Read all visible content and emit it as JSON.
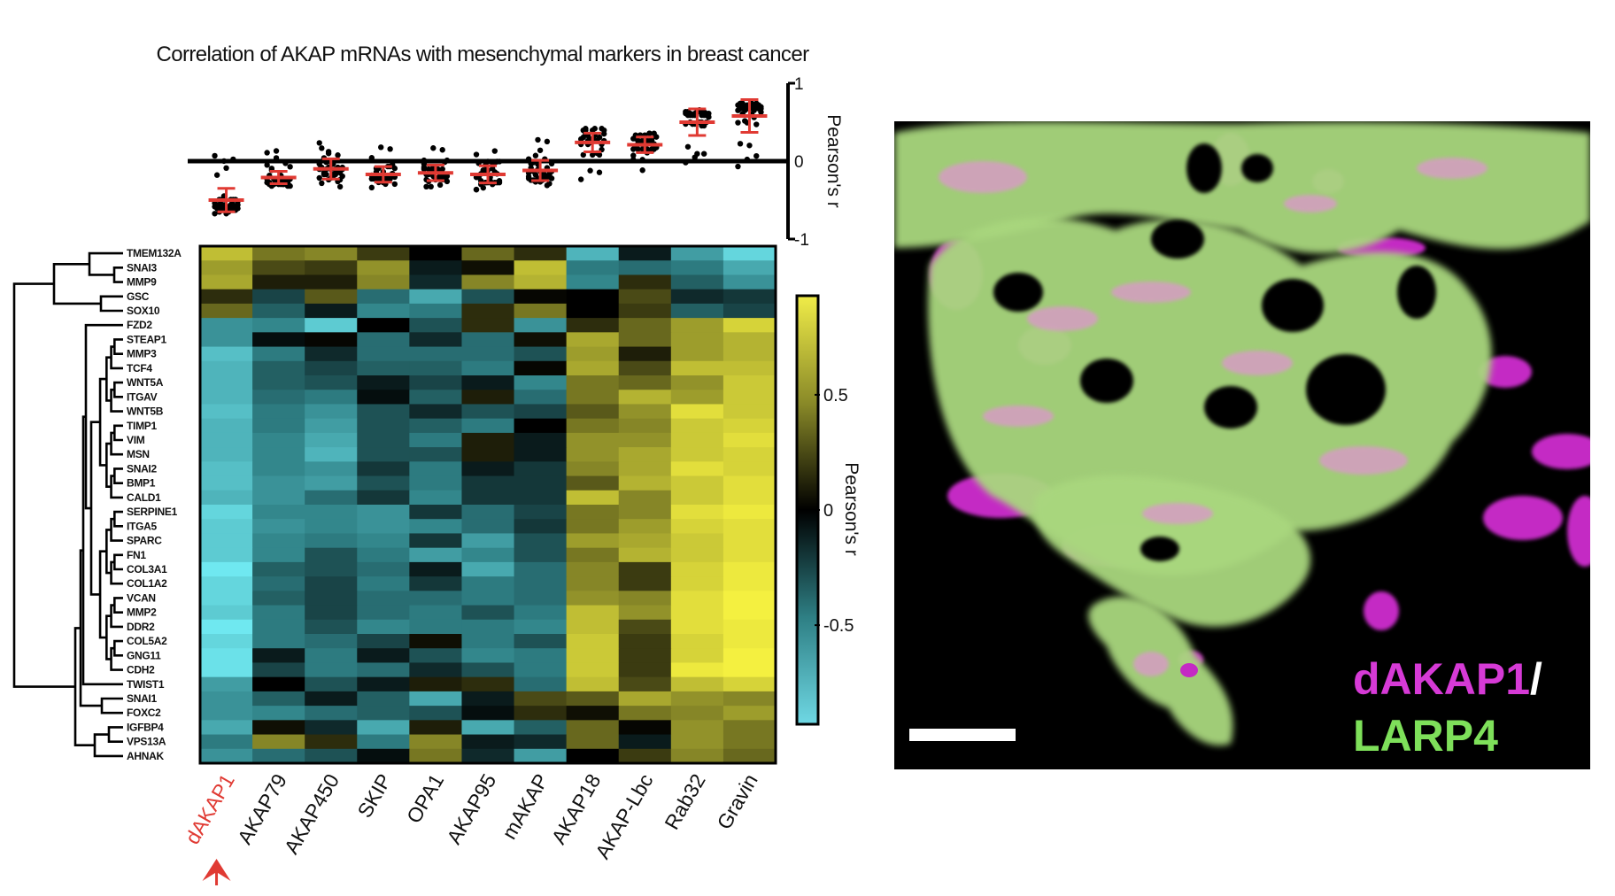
{
  "title": "Correlation of AKAP mRNAs with mesenchymal markers in breast cancer",
  "chart_data": [
    {
      "type": "scatter",
      "title": "Correlation of AKAP mRNAs with mesenchymal markers in breast cancer",
      "ylabel": "Pearson's r",
      "ylim": [
        -1,
        1
      ],
      "yticks": [
        "1",
        "0",
        "-1"
      ],
      "categories": [
        "dAKAP1",
        "AKAP79",
        "AKAP450",
        "SKIP",
        "OPA1",
        "AKAP95",
        "mAKAP",
        "AKAP18",
        "AKAP-Lbc",
        "Rab32",
        "Gravin"
      ],
      "means": [
        -0.5,
        -0.21,
        -0.1,
        -0.17,
        -0.15,
        -0.17,
        -0.12,
        0.24,
        0.21,
        0.5,
        0.58
      ],
      "sd": [
        0.15,
        0.08,
        0.13,
        0.1,
        0.1,
        0.11,
        0.13,
        0.12,
        0.1,
        0.17,
        0.21
      ],
      "note": "individual points = per-marker correlations (heatmap values)"
    },
    {
      "type": "heatmap",
      "xlabels": [
        "dAKAP1",
        "AKAP79",
        "AKAP450",
        "SKIP",
        "OPA1",
        "AKAP95",
        "mAKAP",
        "AKAP18",
        "AKAP-Lbc",
        "Rab32",
        "Gravin"
      ],
      "highlight": "dAKAP1",
      "ylabels": [
        "TMEM132A",
        "SNAI3",
        "MMP9",
        "GSC",
        "SOX10",
        "FZD2",
        "STEAP1",
        "MMP3",
        "TCF4",
        "WNT5A",
        "ITGAV",
        "WNT5B",
        "TIMP1",
        "VIM",
        "MSN",
        "SNAI2",
        "BMP1",
        "CALD1",
        "SERPINE1",
        "ITGA5",
        "SPARC",
        "FN1",
        "COL3A1",
        "COL1A2",
        "VCAN",
        "MMP2",
        "DDR2",
        "COL5A2",
        "GNG11",
        "CDH2",
        "TWIST1",
        "SNAI1",
        "FOXC2",
        "IGFBP4",
        "VPS13A",
        "AHNAK"
      ],
      "values": [
        [
          0.7,
          0.4,
          0.45,
          0.2,
          0.0,
          0.35,
          0.15,
          -0.7,
          -0.1,
          -0.6,
          -0.85
        ],
        [
          0.55,
          0.25,
          0.2,
          0.5,
          -0.1,
          0.05,
          0.7,
          -0.45,
          -0.4,
          -0.45,
          -0.65
        ],
        [
          0.6,
          0.1,
          0.1,
          0.45,
          -0.15,
          0.45,
          0.65,
          -0.5,
          0.15,
          -0.35,
          -0.55
        ],
        [
          0.15,
          -0.25,
          0.3,
          -0.4,
          -0.65,
          -0.3,
          0.02,
          0.0,
          0.25,
          -0.15,
          -0.2
        ],
        [
          0.35,
          -0.35,
          -0.1,
          -0.5,
          -0.45,
          0.15,
          0.4,
          0.0,
          0.2,
          -0.35,
          -0.25
        ],
        [
          -0.55,
          -0.5,
          -0.8,
          0.0,
          -0.3,
          0.15,
          -0.55,
          0.15,
          0.35,
          0.55,
          0.8
        ],
        [
          -0.55,
          -0.05,
          0.02,
          -0.4,
          -0.15,
          -0.4,
          0.05,
          0.6,
          0.35,
          0.55,
          0.65
        ],
        [
          -0.75,
          -0.45,
          -0.15,
          -0.4,
          -0.4,
          -0.4,
          -0.3,
          0.55,
          0.1,
          0.55,
          0.65
        ],
        [
          -0.7,
          -0.35,
          -0.25,
          -0.35,
          -0.35,
          -0.45,
          0.02,
          0.6,
          0.25,
          0.7,
          0.7
        ],
        [
          -0.7,
          -0.35,
          -0.3,
          -0.1,
          -0.25,
          -0.1,
          -0.5,
          0.4,
          0.35,
          0.5,
          0.75
        ],
        [
          -0.7,
          -0.4,
          -0.45,
          -0.05,
          -0.35,
          0.1,
          -0.4,
          0.4,
          0.65,
          0.55,
          0.75
        ],
        [
          -0.75,
          -0.45,
          -0.55,
          -0.3,
          -0.15,
          -0.3,
          -0.25,
          0.3,
          0.5,
          0.85,
          0.75
        ],
        [
          -0.7,
          -0.45,
          -0.6,
          -0.3,
          -0.35,
          -0.45,
          0.0,
          0.4,
          0.45,
          0.75,
          0.8
        ],
        [
          -0.7,
          -0.5,
          -0.65,
          -0.3,
          -0.45,
          0.1,
          -0.1,
          0.5,
          0.5,
          0.75,
          0.85
        ],
        [
          -0.7,
          -0.5,
          -0.7,
          -0.3,
          -0.3,
          0.1,
          -0.1,
          0.5,
          0.6,
          0.75,
          0.8
        ],
        [
          -0.75,
          -0.5,
          -0.55,
          -0.2,
          -0.45,
          -0.1,
          -0.2,
          0.45,
          0.6,
          0.85,
          0.8
        ],
        [
          -0.75,
          -0.55,
          -0.6,
          -0.3,
          -0.45,
          -0.2,
          -0.2,
          0.3,
          0.65,
          0.75,
          0.85
        ],
        [
          -0.7,
          -0.55,
          -0.4,
          -0.2,
          -0.5,
          -0.2,
          -0.2,
          0.7,
          0.45,
          0.75,
          0.85
        ],
        [
          -0.85,
          -0.5,
          -0.5,
          -0.55,
          -0.2,
          -0.4,
          -0.25,
          0.4,
          0.45,
          0.85,
          0.9
        ],
        [
          -0.8,
          -0.55,
          -0.5,
          -0.55,
          -0.5,
          -0.4,
          -0.2,
          0.4,
          0.55,
          0.8,
          0.85
        ],
        [
          -0.8,
          -0.5,
          -0.45,
          -0.5,
          -0.2,
          -0.6,
          -0.3,
          0.55,
          0.6,
          0.75,
          0.85
        ],
        [
          -0.8,
          -0.5,
          -0.3,
          -0.45,
          -0.6,
          -0.5,
          -0.3,
          0.4,
          0.65,
          0.75,
          0.85
        ],
        [
          -0.95,
          -0.35,
          -0.3,
          -0.4,
          -0.1,
          -0.65,
          -0.4,
          0.45,
          0.2,
          0.8,
          0.9
        ],
        [
          -0.85,
          -0.4,
          -0.25,
          -0.45,
          -0.2,
          -0.45,
          -0.4,
          0.45,
          0.2,
          0.8,
          0.9
        ],
        [
          -0.85,
          -0.35,
          -0.25,
          -0.4,
          -0.4,
          -0.45,
          -0.4,
          0.5,
          0.45,
          0.85,
          0.95
        ],
        [
          -0.8,
          -0.45,
          -0.25,
          -0.4,
          -0.45,
          -0.3,
          -0.45,
          0.7,
          0.5,
          0.85,
          0.95
        ],
        [
          -0.95,
          -0.45,
          -0.3,
          -0.5,
          -0.45,
          -0.45,
          -0.5,
          0.7,
          0.25,
          0.85,
          0.9
        ],
        [
          -0.85,
          -0.45,
          -0.4,
          -0.25,
          0.05,
          -0.45,
          -0.3,
          0.75,
          0.2,
          0.8,
          0.9
        ],
        [
          -0.9,
          -0.1,
          -0.45,
          -0.1,
          -0.3,
          -0.5,
          -0.45,
          0.75,
          0.2,
          0.8,
          0.95
        ],
        [
          -0.9,
          -0.25,
          -0.45,
          -0.4,
          -0.15,
          -0.3,
          -0.45,
          0.75,
          0.2,
          0.9,
          0.95
        ],
        [
          -0.6,
          0.0,
          -0.3,
          -0.1,
          0.1,
          0.15,
          -0.4,
          0.7,
          0.25,
          0.7,
          0.8
        ],
        [
          -0.55,
          -0.35,
          -0.1,
          -0.35,
          -0.65,
          -0.1,
          0.25,
          0.3,
          0.6,
          0.5,
          0.45
        ],
        [
          -0.55,
          -0.5,
          -0.4,
          -0.35,
          -0.3,
          -0.05,
          0.15,
          0.05,
          0.4,
          0.45,
          0.55
        ],
        [
          -0.65,
          0.05,
          -0.15,
          -0.65,
          0.1,
          -0.65,
          -0.35,
          0.35,
          0.02,
          0.5,
          0.4
        ],
        [
          -0.45,
          0.45,
          0.15,
          -0.45,
          0.45,
          -0.1,
          -0.15,
          0.35,
          -0.1,
          0.5,
          0.4
        ],
        [
          -0.55,
          -0.4,
          -0.3,
          -0.05,
          0.4,
          -0.15,
          -0.6,
          0.0,
          0.2,
          0.45,
          0.35
        ]
      ],
      "colorbar": {
        "label": "Pearson's r",
        "ticks": [
          "0.5",
          "0",
          "-0.5"
        ],
        "tick_values": [
          0.5,
          0,
          -0.5
        ],
        "range": [
          -0.93,
          0.93
        ],
        "low_color": "#6fe8f0",
        "mid_color": "#000000",
        "high_color": "#f4f040"
      }
    }
  ],
  "image_panel": {
    "label_protein1": "dAKAP1",
    "label_separator": "/",
    "label_protein2": "LARP4",
    "color_protein1": "#d63ad6",
    "color_protein2": "#7ee05a"
  },
  "colors": {
    "highlight": "#e03a33",
    "mean_bar": "#e03a33"
  }
}
